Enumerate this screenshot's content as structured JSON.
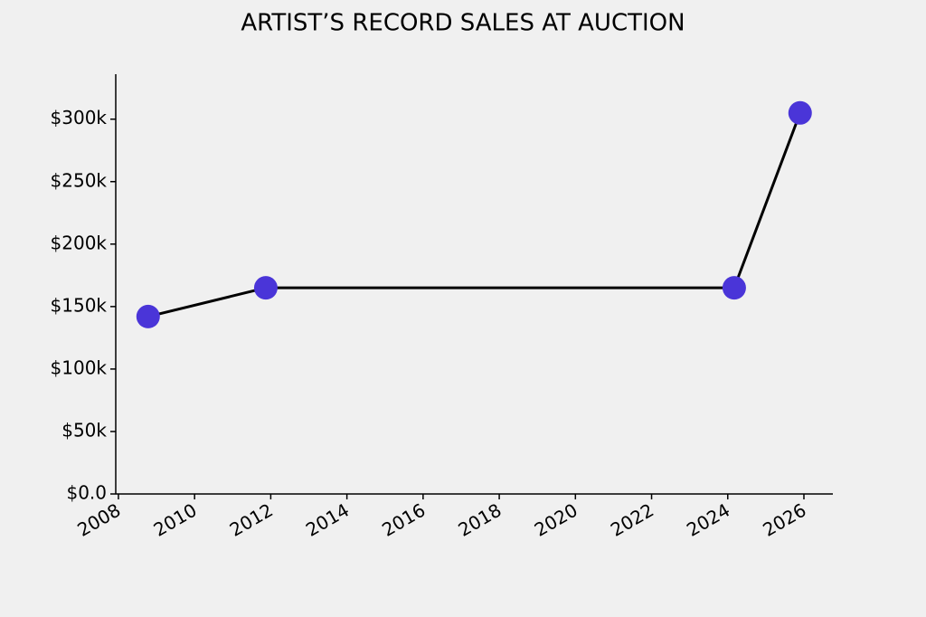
{
  "chart_data": {
    "type": "line",
    "title": "ARTIST’S RECORD SALES AT AUCTION",
    "x": [
      2008.78,
      2011.87,
      2024.17,
      2025.9
    ],
    "series": [
      {
        "name": "Record sales",
        "color": "#4a35d8",
        "line_color": "#000000",
        "values": [
          142000,
          165000,
          165000,
          305000
        ]
      }
    ],
    "xlim": [
      2007.93,
      2026.76
    ],
    "xticks": [
      2008,
      2010,
      2012,
      2014,
      2016,
      2018,
      2020,
      2022,
      2024,
      2026
    ],
    "ylim": [
      0,
      336000
    ],
    "yticks": [
      {
        "value": 0,
        "label": "$0.0"
      },
      {
        "value": 50000,
        "label": "$50k"
      },
      {
        "value": 100000,
        "label": "$100k"
      },
      {
        "value": 150000,
        "label": "$150k"
      },
      {
        "value": 200000,
        "label": "$200k"
      },
      {
        "value": 250000,
        "label": "$250k"
      },
      {
        "value": 300000,
        "label": "$300k"
      }
    ],
    "grid": false
  }
}
